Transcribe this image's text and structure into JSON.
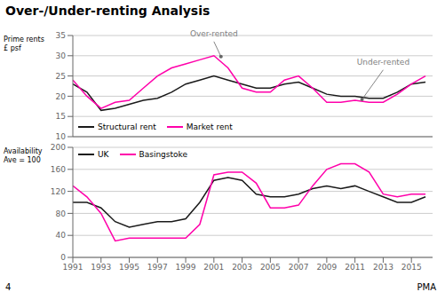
{
  "chart_data": [
    {
      "type": "line",
      "title": "Over-/Under-renting Analysis",
      "ylabel": [
        "Prime rents",
        "£ psf"
      ],
      "x": [
        1991,
        1992,
        1993,
        1994,
        1995,
        1996,
        1997,
        1998,
        1999,
        2000,
        2001,
        2002,
        2003,
        2004,
        2005,
        2006,
        2007,
        2008,
        2009,
        2010,
        2011,
        2012,
        2013,
        2014,
        2015,
        2016
      ],
      "series": [
        {
          "name": "Structural rent",
          "color": "#1a1a1a",
          "values": [
            23,
            21,
            16.5,
            17,
            18,
            19,
            19.5,
            21,
            23,
            24,
            25,
            24,
            23,
            22,
            22,
            23,
            23.5,
            22,
            20.5,
            20,
            20,
            19.5,
            19.5,
            21,
            23,
            23.5
          ]
        },
        {
          "name": "Market rent",
          "color": "#FF00AA",
          "values": [
            24,
            20,
            17,
            18.5,
            19,
            22,
            25,
            27,
            28,
            29,
            30,
            27,
            22,
            21,
            21,
            24,
            25,
            22,
            18.5,
            18.5,
            19,
            18.5,
            18.5,
            20.5,
            23,
            25
          ]
        }
      ],
      "xlim": [
        1991,
        2016.5
      ],
      "ylim": [
        10,
        35
      ],
      "yticks": [
        10,
        15,
        20,
        25,
        30,
        35
      ],
      "grid": true,
      "legend": "lower left",
      "tick_labels": "y",
      "annotations": [
        {
          "text": "Over-rented",
          "x": 2001.0,
          "y": 33.5,
          "point": [
            2001.5,
            29.8
          ]
        },
        {
          "text": "Under-rented",
          "x": 2013.0,
          "y": 26.5,
          "point": [
            2011.5,
            19.2
          ]
        }
      ]
    },
    {
      "type": "line",
      "ylabel": [
        "Availability",
        "Ave = 100"
      ],
      "x": [
        1991,
        1992,
        1993,
        1994,
        1995,
        1996,
        1997,
        1998,
        1999,
        2000,
        2001,
        2002,
        2003,
        2004,
        2005,
        2006,
        2007,
        2008,
        2009,
        2010,
        2011,
        2012,
        2013,
        2014,
        2015,
        2016
      ],
      "series": [
        {
          "name": "UK",
          "color": "#1a1a1a",
          "values": [
            100,
            100,
            90,
            65,
            55,
            60,
            65,
            65,
            70,
            100,
            140,
            145,
            140,
            115,
            110,
            110,
            115,
            125,
            130,
            125,
            130,
            120,
            110,
            100,
            100,
            110
          ]
        },
        {
          "name": "Basingstoke",
          "color": "#FF00AA",
          "values": [
            130,
            110,
            80,
            30,
            35,
            35,
            35,
            35,
            35,
            60,
            150,
            155,
            155,
            135,
            90,
            90,
            95,
            130,
            160,
            170,
            170,
            155,
            115,
            110,
            115,
            115
          ]
        }
      ],
      "xlim": [
        1991,
        2016.5
      ],
      "xticks": [
        1991,
        1993,
        1995,
        1997,
        1999,
        2001,
        2003,
        2005,
        2007,
        2009,
        2011,
        2013,
        2015
      ],
      "ylim": [
        0,
        200
      ],
      "yticks": [
        0,
        40,
        80,
        120,
        160,
        200
      ],
      "grid": true,
      "legend": "upper left",
      "annotations": [
        {
          "text": "4"
        },
        {
          "text": "PMA"
        }
      ]
    }
  ]
}
